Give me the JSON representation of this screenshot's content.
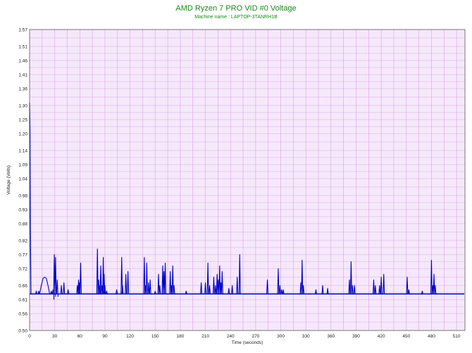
{
  "chart_data": {
    "type": "line",
    "title": "AMD Ryzen 7 PRO VID #0 Voltage",
    "subtitle": "Machine name : LAPTOP-3TANRH1B",
    "xlabel": "Time (seconds)",
    "ylabel": "Voltage (Volts)",
    "xlim": [
      0,
      520
    ],
    "ylim": [
      0.5,
      1.57
    ],
    "x_ticks": [
      "0",
      "30",
      "60",
      "90",
      "120",
      "150",
      "180",
      "210",
      "240",
      "270",
      "300",
      "330",
      "360",
      "390",
      "420",
      "450",
      "480",
      "510"
    ],
    "y_ticks": [
      "0.50",
      "0.56",
      "0.61",
      "0.66",
      "0.72",
      "0.77",
      "0.82",
      "0.88",
      "0.93",
      "0.98",
      "1.04",
      "1.09",
      "1.14",
      "1.20",
      "1.25",
      "1.30",
      "1.36",
      "1.41",
      "1.46",
      "1.51",
      "1.57"
    ],
    "grid": true,
    "background_color": "#f6e8fb",
    "grid_color": "#d7a4e4",
    "line_color": "#0000cc",
    "baseline": 0.63,
    "initial_spike": [
      [
        0,
        1.31
      ],
      [
        0.5,
        1.21
      ],
      [
        1,
        0.84
      ],
      [
        1.6,
        0.63
      ]
    ],
    "bump": [
      [
        12,
        0.63
      ],
      [
        14,
        0.66
      ],
      [
        16,
        0.685
      ],
      [
        18,
        0.69
      ],
      [
        20,
        0.685
      ],
      [
        22,
        0.66
      ],
      [
        24,
        0.63
      ]
    ],
    "dips": [
      [
        29,
        0.61
      ],
      [
        31,
        0.62
      ],
      [
        34,
        0.62
      ]
    ],
    "spikes": [
      [
        8,
        0.64
      ],
      [
        11,
        0.64
      ],
      [
        26,
        0.64
      ],
      [
        28,
        0.645
      ],
      [
        29.5,
        0.77
      ],
      [
        31,
        0.76
      ],
      [
        33,
        0.68
      ],
      [
        38,
        0.66
      ],
      [
        41,
        0.67
      ],
      [
        46,
        0.645
      ],
      [
        57,
        0.66
      ],
      [
        58.5,
        0.68
      ],
      [
        59.5,
        0.67
      ],
      [
        61,
        0.74
      ],
      [
        81,
        0.79
      ],
      [
        82.5,
        0.68
      ],
      [
        84,
        0.66
      ],
      [
        85,
        0.73
      ],
      [
        86.5,
        0.66
      ],
      [
        88,
        0.76
      ],
      [
        89,
        0.7
      ],
      [
        90,
        0.66
      ],
      [
        92,
        0.64
      ],
      [
        104,
        0.645
      ],
      [
        110,
        0.76
      ],
      [
        111,
        0.66
      ],
      [
        115,
        0.7
      ],
      [
        117.5,
        0.71
      ],
      [
        137,
        0.76
      ],
      [
        138.5,
        0.66
      ],
      [
        140,
        0.74
      ],
      [
        142,
        0.67
      ],
      [
        144,
        0.68
      ],
      [
        150,
        0.64
      ],
      [
        154,
        0.7
      ],
      [
        155.5,
        0.66
      ],
      [
        159,
        0.73
      ],
      [
        160.5,
        0.71
      ],
      [
        162,
        0.74
      ],
      [
        168,
        0.71
      ],
      [
        169.5,
        0.66
      ],
      [
        171,
        0.73
      ],
      [
        172.5,
        0.66
      ],
      [
        187,
        0.64
      ],
      [
        205,
        0.67
      ],
      [
        210,
        0.67
      ],
      [
        213,
        0.74
      ],
      [
        215,
        0.66
      ],
      [
        220,
        0.69
      ],
      [
        222,
        0.66
      ],
      [
        224,
        0.7
      ],
      [
        225.5,
        0.68
      ],
      [
        227,
        0.73
      ],
      [
        228.5,
        0.67
      ],
      [
        230,
        0.71
      ],
      [
        238,
        0.65
      ],
      [
        242,
        0.66
      ],
      [
        248,
        0.69
      ],
      [
        251,
        0.77
      ],
      [
        284,
        0.68
      ],
      [
        297,
        0.72
      ],
      [
        299,
        0.66
      ],
      [
        301,
        0.645
      ],
      [
        303,
        0.645
      ],
      [
        324,
        0.67
      ],
      [
        325.5,
        0.75
      ],
      [
        327,
        0.66
      ],
      [
        342,
        0.645
      ],
      [
        350,
        0.66
      ],
      [
        356,
        0.65
      ],
      [
        382,
        0.68
      ],
      [
        384,
        0.745
      ],
      [
        385.5,
        0.66
      ],
      [
        388,
        0.66
      ],
      [
        411,
        0.68
      ],
      [
        413,
        0.66
      ],
      [
        418,
        0.66
      ],
      [
        420,
        0.69
      ],
      [
        423,
        0.7
      ],
      [
        451,
        0.69
      ],
      [
        453,
        0.645
      ],
      [
        469,
        0.64
      ],
      [
        480,
        0.75
      ],
      [
        481.5,
        0.66
      ],
      [
        483,
        0.7
      ],
      [
        484.5,
        0.66
      ]
    ]
  }
}
